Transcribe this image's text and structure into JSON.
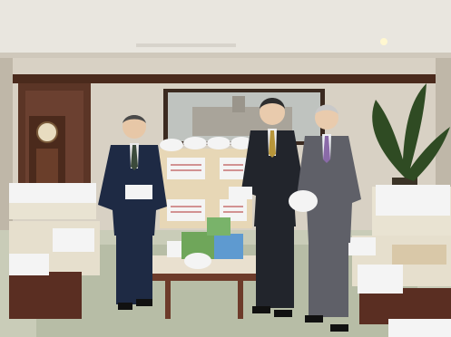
{
  "scene": {
    "colors": {
      "ceiling": "#e9e6df",
      "wall": "#d8d1c4",
      "wood_trim": "#4a2a1c",
      "floor": "#c9ccb8",
      "carpet": "#b7bda6",
      "box": "#e7d7b6",
      "box_shadow": "#c9b590",
      "white_cover": "#f4f4f4",
      "suit_navy": "#1e2a44",
      "suit_dark": "#22252c",
      "suit_gray": "#5f6068",
      "chair_wood": "#5a2e22",
      "plant": "#2f4b23",
      "table_wood": "#6d3b2a"
    }
  }
}
